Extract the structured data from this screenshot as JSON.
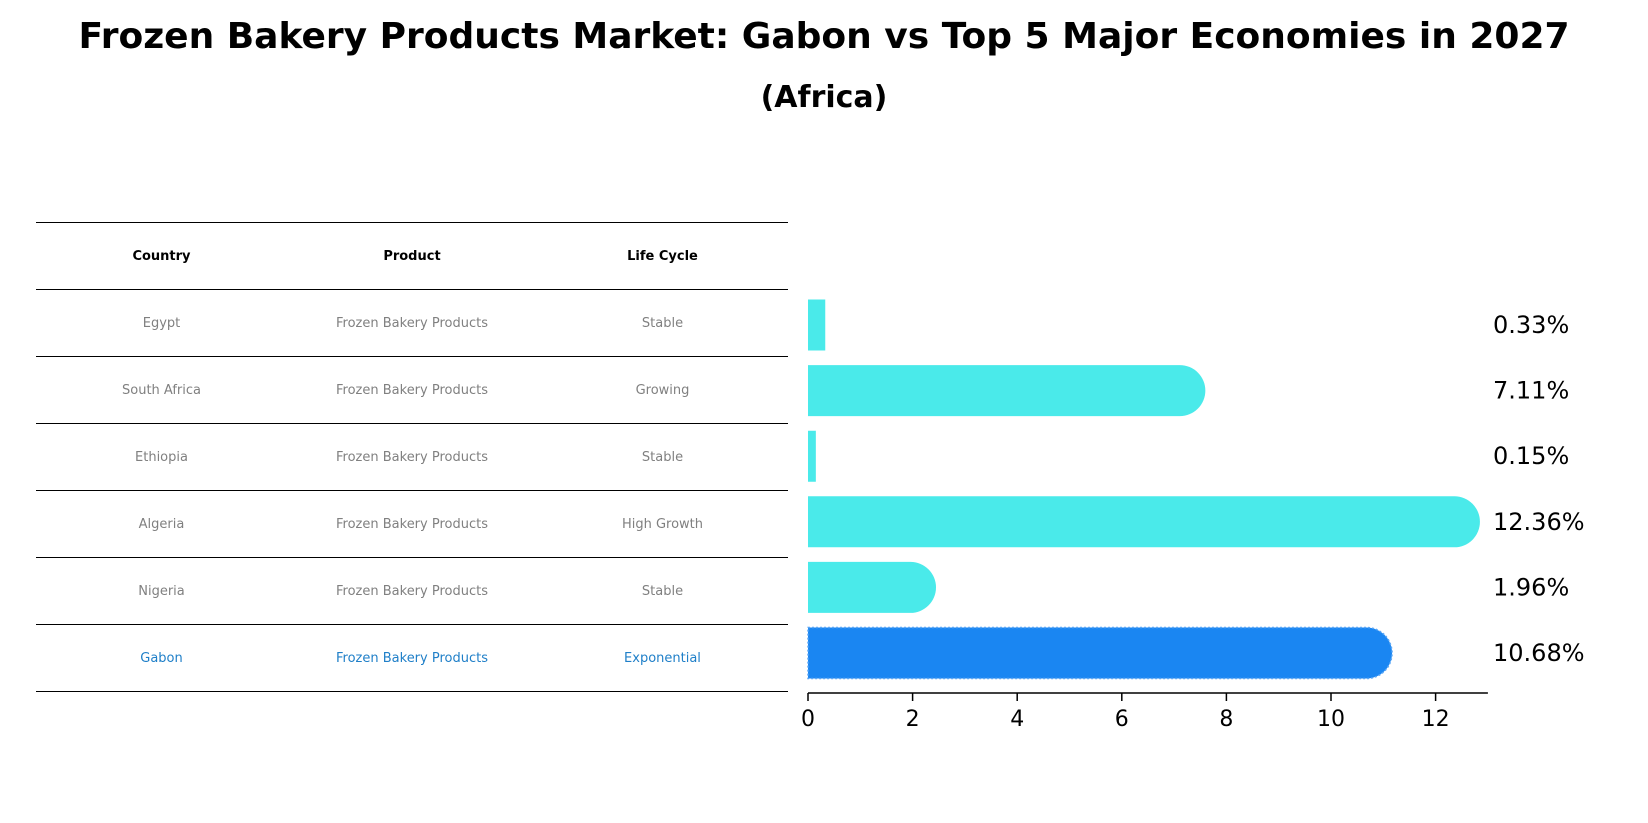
{
  "header": {
    "title": "Frozen Bakery Products Market: Gabon vs Top 5 Major Economies in 2027",
    "subtitle": "(Africa)"
  },
  "table": {
    "columns": [
      "Country",
      "Product",
      "Life Cycle"
    ],
    "rows": [
      {
        "country": "Egypt",
        "product": "Frozen Bakery Products",
        "life_cycle": "Stable"
      },
      {
        "country": "South Africa",
        "product": "Frozen Bakery Products",
        "life_cycle": "Growing"
      },
      {
        "country": "Ethiopia",
        "product": "Frozen Bakery Products",
        "life_cycle": "Stable"
      },
      {
        "country": "Algeria",
        "product": "Frozen Bakery Products",
        "life_cycle": "High Growth"
      },
      {
        "country": "Nigeria",
        "product": "Frozen Bakery Products",
        "life_cycle": "Stable"
      },
      {
        "country": "Gabon",
        "product": "Frozen Bakery Products",
        "life_cycle": "Exponential"
      }
    ]
  },
  "colors": {
    "bar": "#4aeaea",
    "highlight_bar": "#1a86f2",
    "highlight_text": "#1f7fc8",
    "muted_text": "#808080"
  },
  "chart_data": {
    "type": "bar",
    "orientation": "horizontal",
    "categories": [
      "Egypt",
      "South Africa",
      "Ethiopia",
      "Algeria",
      "Nigeria",
      "Gabon"
    ],
    "values": [
      0.33,
      7.11,
      0.15,
      12.36,
      1.96,
      10.68
    ],
    "value_labels": [
      "0.33%",
      "7.11%",
      "0.15%",
      "12.36%",
      "1.96%",
      "10.68%"
    ],
    "highlight": "Gabon",
    "xlim": [
      0,
      13
    ],
    "xticks": [
      0,
      2,
      4,
      6,
      8,
      10,
      12
    ],
    "grid": false
  }
}
